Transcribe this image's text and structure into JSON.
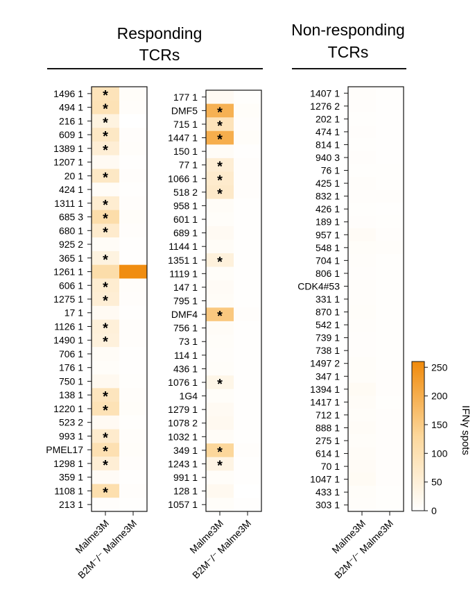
{
  "groups": {
    "responding": {
      "title_line1": "Responding",
      "title_line2": "TCRs"
    },
    "nonresponding": {
      "title_line1": "Non-responding",
      "title_line2": "TCRs"
    }
  },
  "colorbar": {
    "label": "IFNγ spots",
    "ticks": [
      0,
      50,
      100,
      150,
      200,
      250
    ],
    "range": [
      0,
      260
    ],
    "colors": [
      "#ffffff",
      "#fcd79b",
      "#f08a0b"
    ]
  },
  "chart_data": [
    {
      "type": "heatmap",
      "columns": [
        "Malme3M",
        "B2M⁻/⁻ Malme3M"
      ],
      "rows": [
        "1496 1",
        "494 1",
        "216 1",
        "609 1",
        "1389 1",
        "1207 1",
        "20 1",
        "424 1",
        "1311 1",
        "685 3",
        "680 1",
        "925 2",
        "365 1",
        "1261 1",
        "606 1",
        "1275 1",
        "17 1",
        "1126 1",
        "1490 1",
        "706 1",
        "176 1",
        "750 1",
        "138 1",
        "1220 1",
        "523 2",
        "993 1",
        "PMEL17",
        "1298 1",
        "359 1",
        "1108 1",
        "213 1"
      ],
      "values": [
        [
          90,
          8
        ],
        [
          95,
          6
        ],
        [
          40,
          0
        ],
        [
          75,
          5
        ],
        [
          55,
          6
        ],
        [
          15,
          3
        ],
        [
          75,
          5
        ],
        [
          10,
          3
        ],
        [
          60,
          5
        ],
        [
          110,
          8
        ],
        [
          65,
          5
        ],
        [
          10,
          3
        ],
        [
          40,
          3
        ],
        [
          110,
          255
        ],
        [
          60,
          6
        ],
        [
          55,
          5
        ],
        [
          15,
          3
        ],
        [
          50,
          5
        ],
        [
          45,
          5
        ],
        [
          10,
          3
        ],
        [
          8,
          3
        ],
        [
          20,
          4
        ],
        [
          85,
          6
        ],
        [
          95,
          8
        ],
        [
          15,
          4
        ],
        [
          65,
          6
        ],
        [
          100,
          8
        ],
        [
          55,
          5
        ],
        [
          12,
          3
        ],
        [
          105,
          5
        ],
        [
          5,
          2
        ]
      ],
      "significant": [
        true,
        true,
        true,
        true,
        true,
        false,
        true,
        false,
        true,
        true,
        true,
        false,
        true,
        false,
        true,
        true,
        false,
        true,
        true,
        false,
        false,
        false,
        true,
        true,
        false,
        true,
        true,
        true,
        false,
        true,
        false
      ]
    },
    {
      "type": "heatmap",
      "columns": [
        "Malme3M",
        "B2M⁻/⁻ Malme3M"
      ],
      "rows": [
        "177 1",
        "DMF5",
        "715 1",
        "1447 1",
        "150 1",
        "77 1",
        "1066 1",
        "518 2",
        "958 1",
        "601 1",
        "689 1",
        "1144 1",
        "1351 1",
        "1119 1",
        "147 1",
        "795 1",
        "DMF4",
        "756 1",
        "73 1",
        "114 1",
        "436 1",
        "1076 1",
        "1G4",
        "1279 1",
        "1078 2",
        "1032 1",
        "349 1",
        "1243 1",
        "991 1",
        "128 1",
        "1057 1"
      ],
      "values": [
        [
          15,
          4
        ],
        [
          195,
          8
        ],
        [
          90,
          5
        ],
        [
          200,
          8
        ],
        [
          10,
          3
        ],
        [
          55,
          5
        ],
        [
          65,
          5
        ],
        [
          70,
          5
        ],
        [
          10,
          3
        ],
        [
          8,
          3
        ],
        [
          15,
          3
        ],
        [
          10,
          3
        ],
        [
          45,
          3
        ],
        [
          8,
          3
        ],
        [
          12,
          3
        ],
        [
          10,
          3
        ],
        [
          155,
          5
        ],
        [
          10,
          3
        ],
        [
          8,
          3
        ],
        [
          6,
          3
        ],
        [
          8,
          3
        ],
        [
          30,
          3
        ],
        [
          8,
          3
        ],
        [
          15,
          3
        ],
        [
          20,
          3
        ],
        [
          10,
          3
        ],
        [
          130,
          5
        ],
        [
          35,
          3
        ],
        [
          8,
          3
        ],
        [
          20,
          0
        ],
        [
          8,
          3
        ]
      ],
      "significant": [
        false,
        true,
        true,
        true,
        false,
        true,
        true,
        true,
        false,
        false,
        false,
        false,
        true,
        false,
        false,
        false,
        true,
        false,
        false,
        false,
        false,
        true,
        false,
        false,
        false,
        false,
        true,
        true,
        false,
        false,
        false
      ]
    },
    {
      "type": "heatmap",
      "columns": [
        "Malme3M",
        "B2M⁻/⁻ Malme3M"
      ],
      "rows": [
        "1407 1",
        "1276 2",
        "202 1",
        "474 1",
        "814 1",
        "940 3",
        "76 1",
        "425 1",
        "832 1",
        "426 1",
        "189 1",
        "957 1",
        "548 1",
        "704 1",
        "806 1",
        "CDK4#53",
        "331 1",
        "870 1",
        "542 1",
        "739 1",
        "738 1",
        "1497 2",
        "347 1",
        "1394 1",
        "1417 1",
        "712 1",
        "888 1",
        "275 1",
        "614 1",
        "70 1",
        "1047 1",
        "433 1",
        "303 1"
      ],
      "values": [
        [
          6,
          4
        ],
        [
          5,
          3
        ],
        [
          4,
          3
        ],
        [
          5,
          3
        ],
        [
          4,
          3
        ],
        [
          5,
          3
        ],
        [
          4,
          4
        ],
        [
          6,
          4
        ],
        [
          5,
          5
        ],
        [
          4,
          3
        ],
        [
          5,
          4
        ],
        [
          12,
          5
        ],
        [
          8,
          6
        ],
        [
          6,
          4
        ],
        [
          5,
          4
        ],
        [
          7,
          4
        ],
        [
          6,
          4
        ],
        [
          8,
          4
        ],
        [
          6,
          4
        ],
        [
          5,
          4
        ],
        [
          5,
          4
        ],
        [
          8,
          4
        ],
        [
          8,
          5
        ],
        [
          14,
          5
        ],
        [
          10,
          4
        ],
        [
          8,
          5
        ],
        [
          10,
          5
        ],
        [
          8,
          5
        ],
        [
          10,
          5
        ],
        [
          12,
          5
        ],
        [
          14,
          5
        ],
        [
          8,
          4
        ],
        [
          6,
          4
        ]
      ],
      "significant": [
        false,
        false,
        false,
        false,
        false,
        false,
        false,
        false,
        false,
        false,
        false,
        false,
        false,
        false,
        false,
        false,
        false,
        false,
        false,
        false,
        false,
        false,
        false,
        false,
        false,
        false,
        false,
        false,
        false,
        false,
        false,
        false,
        false
      ]
    }
  ]
}
